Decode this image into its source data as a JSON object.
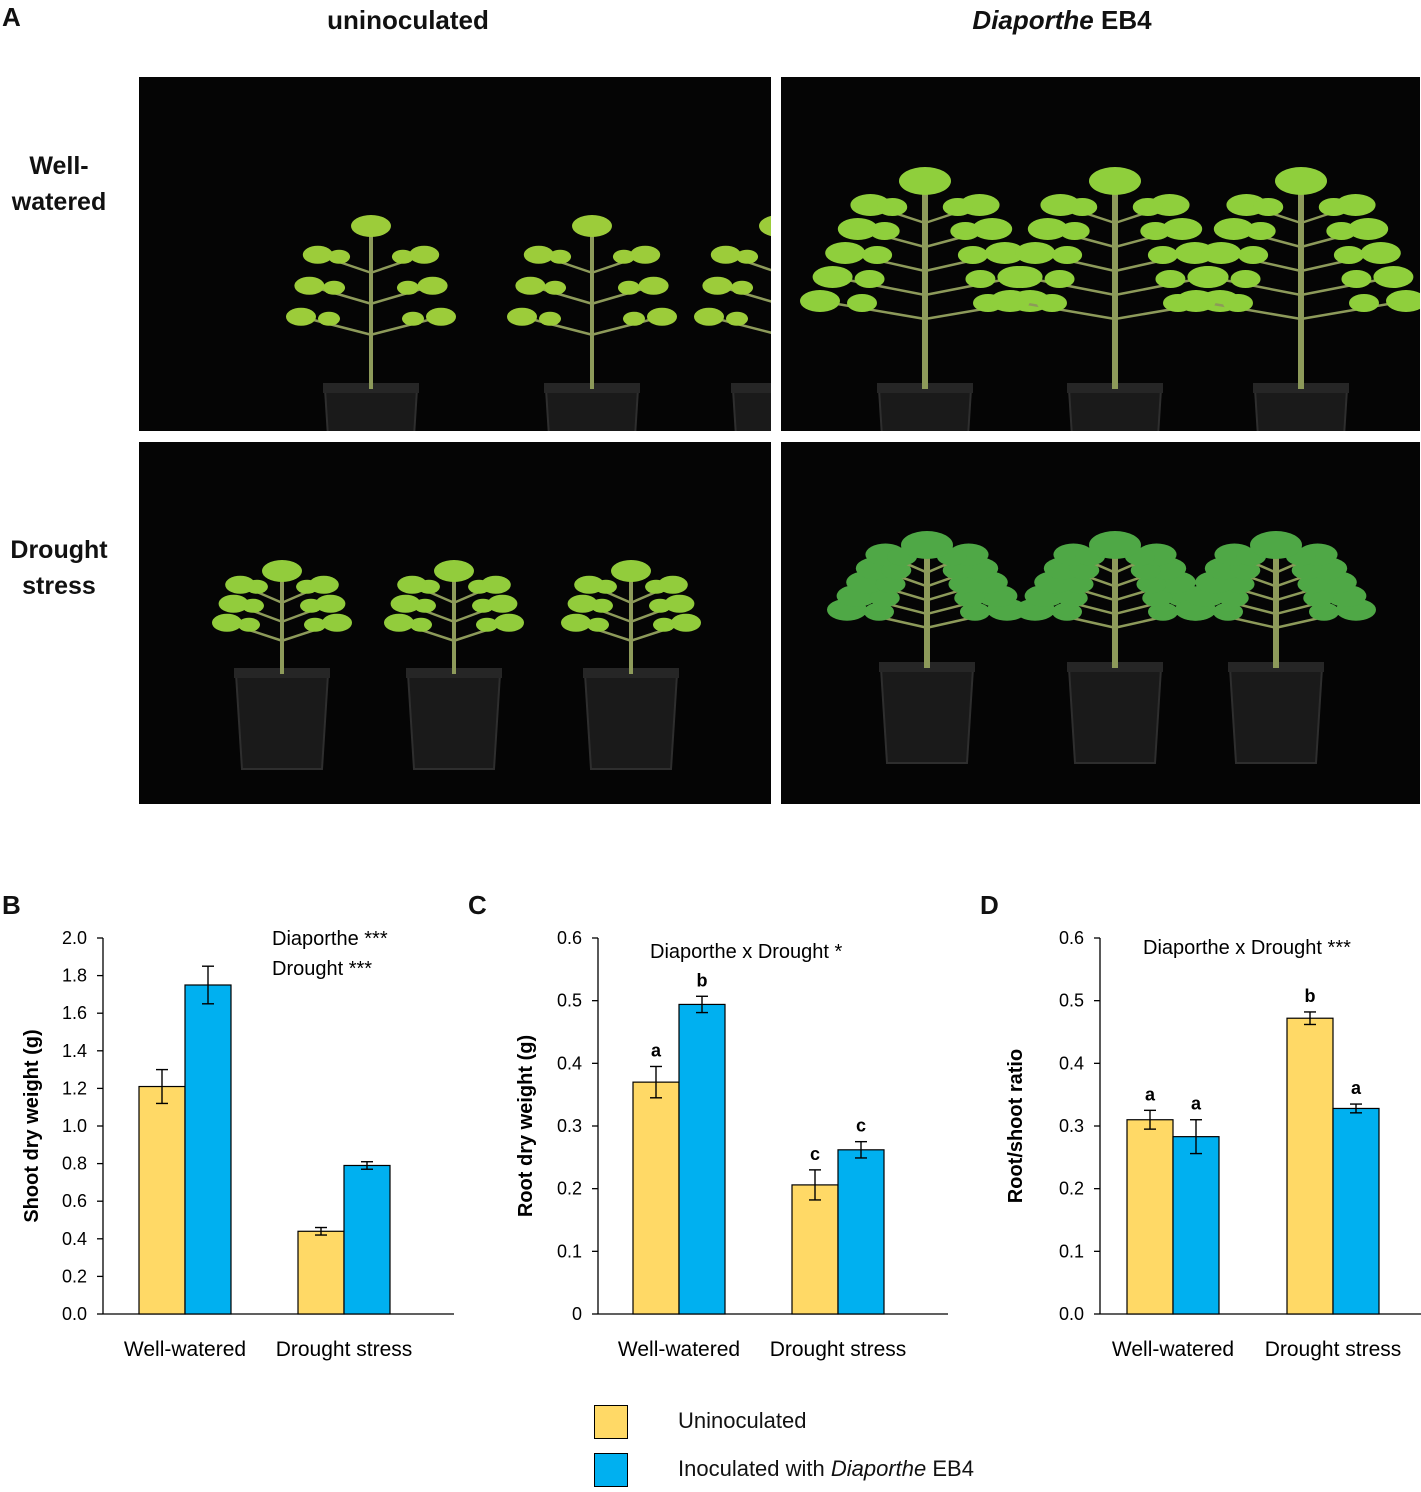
{
  "panel_a": {
    "letter": "A",
    "col_titles": [
      "uninoculated",
      "Diaporthe",
      "EB4"
    ],
    "row_titles": {
      "well_watered": [
        "Well-",
        "watered"
      ],
      "drought": [
        "Drought",
        "stress"
      ]
    }
  },
  "panels": {
    "b": "B",
    "c": "C",
    "d": "D"
  },
  "colors": {
    "uninoculated": "#FFD966",
    "inoculated": "#00B0F0",
    "photo_bg": "#050505"
  },
  "chart_data": [
    {
      "type": "bar",
      "panel": "B",
      "categories": [
        "Well-watered",
        "Drought stress"
      ],
      "series": [
        {
          "name": "Uninoculated",
          "values": [
            1.21,
            0.44
          ],
          "errors": [
            0.09,
            0.02
          ]
        },
        {
          "name": "Inoculated with Diaporthe EB4",
          "values": [
            1.75,
            0.79
          ],
          "errors": [
            0.1,
            0.02
          ]
        }
      ],
      "ylabel": "Shoot dry weight (g)",
      "ylim": [
        0,
        2.0
      ],
      "yticks": [
        "0.0",
        "0.2",
        "0.4",
        "0.6",
        "0.8",
        "1.0",
        "1.2",
        "1.4",
        "1.6",
        "1.8",
        "2.0"
      ],
      "significance_letters": [
        [
          "",
          ""
        ],
        [
          "",
          ""
        ]
      ],
      "annotations": [
        "Diaporthe ***",
        "Drought ***"
      ]
    },
    {
      "type": "bar",
      "panel": "C",
      "categories": [
        "Well-watered",
        "Drought stress"
      ],
      "series": [
        {
          "name": "Uninoculated",
          "values": [
            0.37,
            0.206
          ],
          "errors": [
            0.025,
            0.024
          ]
        },
        {
          "name": "Inoculated with Diaporthe EB4",
          "values": [
            0.494,
            0.262
          ],
          "errors": [
            0.013,
            0.013
          ]
        }
      ],
      "ylabel": "Root dry weight (g)",
      "ylim": [
        0,
        0.6
      ],
      "yticks": [
        "0",
        "0.1",
        "0.2",
        "0.3",
        "0.4",
        "0.5",
        "0.6"
      ],
      "significance_letters": [
        [
          "a",
          "b"
        ],
        [
          "c",
          "c"
        ]
      ],
      "annotations": [
        "Diaporthe x Drought *"
      ]
    },
    {
      "type": "bar",
      "panel": "D",
      "categories": [
        "Well-watered",
        "Drought stress"
      ],
      "series": [
        {
          "name": "Uninoculated",
          "values": [
            0.31,
            0.472
          ],
          "errors": [
            0.015,
            0.01
          ]
        },
        {
          "name": "Inoculated with Diaporthe EB4",
          "values": [
            0.283,
            0.328
          ],
          "errors": [
            0.027,
            0.007
          ]
        }
      ],
      "ylabel": "Root/shoot ratio",
      "ylim": [
        0,
        0.6
      ],
      "yticks": [
        "0.0",
        "0.1",
        "0.2",
        "0.3",
        "0.4",
        "0.5",
        "0.6"
      ],
      "significance_letters": [
        [
          "a",
          "a"
        ],
        [
          "b",
          "a"
        ]
      ],
      "annotations": [
        "Diaporthe x Drought ***"
      ]
    }
  ],
  "legend": {
    "uninoculated": "Uninoculated",
    "inoculated_prefix": "Inoculated with ",
    "inoculated_italic": "Diaporthe",
    "inoculated_suffix": " EB4"
  }
}
